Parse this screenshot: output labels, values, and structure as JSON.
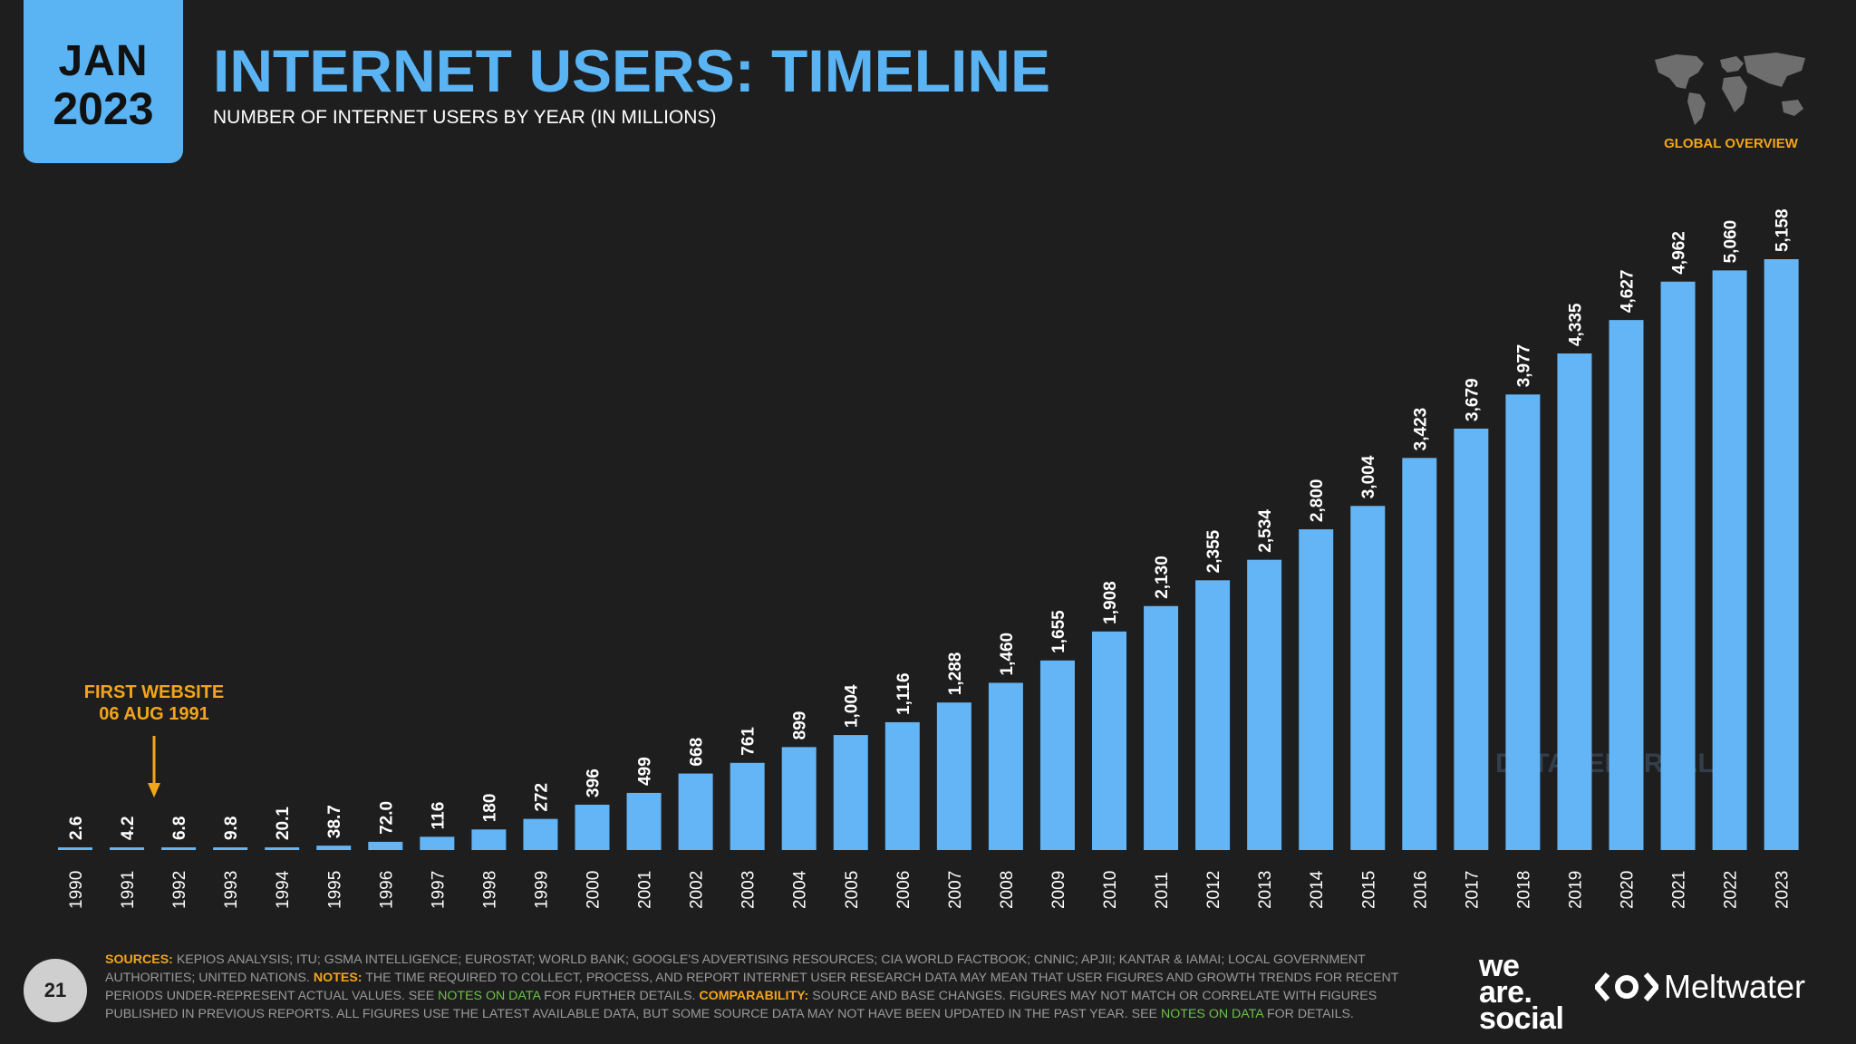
{
  "header": {
    "date_month": "JAN",
    "date_year": "2023",
    "title": "INTERNET USERS: TIMELINE",
    "subtitle": "NUMBER OF INTERNET USERS BY YEAR (IN MILLIONS)",
    "region_label": "GLOBAL OVERVIEW"
  },
  "watermark": "DATAREPORTAL",
  "annotation": {
    "line1": "FIRST WEBSITE",
    "line2": "06 AUG 1991"
  },
  "footer": {
    "page_number": "21",
    "sources_label": "SOURCES:",
    "sources_text": "KEPIOS ANALYSIS; ITU; GSMA INTELLIGENCE; EUROSTAT; WORLD BANK; GOOGLE'S ADVERTISING RESOURCES; CIA WORLD FACTBOOK; CNNIC; APJII; KANTAR & IAMAI; LOCAL GOVERNMENT AUTHORITIES; UNITED NATIONS.",
    "notes_label": "NOTES:",
    "notes_text_1": "THE TIME REQUIRED TO COLLECT, PROCESS, AND REPORT INTERNET USER RESEARCH DATA MAY MEAN THAT USER FIGURES AND GROWTH TRENDS FOR RECENT PERIODS UNDER-REPRESENT ACTUAL VALUES. SEE",
    "notes_link": "NOTES ON DATA",
    "notes_text_2": "FOR FURTHER DETAILS.",
    "comparability_label": "COMPARABILITY:",
    "comparability_text": "SOURCE AND BASE CHANGES. FIGURES MAY NOT MATCH OR CORRELATE WITH FIGURES PUBLISHED IN PREVIOUS REPORTS. ALL FIGURES USE THE LATEST AVAILABLE DATA, BUT SOME SOURCE DATA MAY NOT HAVE BEEN UPDATED IN THE PAST YEAR. SEE",
    "comparability_link": "NOTES ON DATA",
    "comparability_text_2": "FOR DETAILS.",
    "brand_1_line1": "we",
    "brand_1_line2": "are.",
    "brand_1_line3": "social",
    "brand_2": "Meltwater"
  },
  "colors": {
    "bar": "#64b5f6",
    "accent": "#f2a51a",
    "background": "#1e1e1e",
    "title": "#5ab4f4",
    "link": "#6cc24a"
  },
  "chart_data": {
    "type": "bar",
    "title": "INTERNET USERS: TIMELINE",
    "subtitle": "NUMBER OF INTERNET USERS BY YEAR (IN MILLIONS)",
    "categories": [
      "1990",
      "1991",
      "1992",
      "1993",
      "1994",
      "1995",
      "1996",
      "1997",
      "1998",
      "1999",
      "2000",
      "2001",
      "2002",
      "2003",
      "2004",
      "2005",
      "2006",
      "2007",
      "2008",
      "2009",
      "2010",
      "2011",
      "2012",
      "2013",
      "2014",
      "2015",
      "2016",
      "2017",
      "2018",
      "2019",
      "2020",
      "2021",
      "2022",
      "2023"
    ],
    "values": [
      2.6,
      4.2,
      6.8,
      9.8,
      20.1,
      38.7,
      72.0,
      116,
      180,
      272,
      396,
      499,
      668,
      761,
      899,
      1004,
      1116,
      1288,
      1460,
      1655,
      1908,
      2130,
      2355,
      2534,
      2800,
      3004,
      3423,
      3679,
      3977,
      4335,
      4627,
      4962,
      5060,
      5158
    ],
    "value_labels": [
      "2.6",
      "4.2",
      "6.8",
      "9.8",
      "20.1",
      "38.7",
      "72.0",
      "116",
      "180",
      "272",
      "396",
      "499",
      "668",
      "761",
      "899",
      "1,004",
      "1,116",
      "1,288",
      "1,460",
      "1,655",
      "1,908",
      "2,130",
      "2,355",
      "2,534",
      "2,800",
      "3,004",
      "3,423",
      "3,679",
      "3,977",
      "4,335",
      "4,627",
      "4,962",
      "5,060",
      "5,158"
    ],
    "ylim": [
      0,
      5158
    ],
    "grid": false,
    "legend": "none"
  }
}
